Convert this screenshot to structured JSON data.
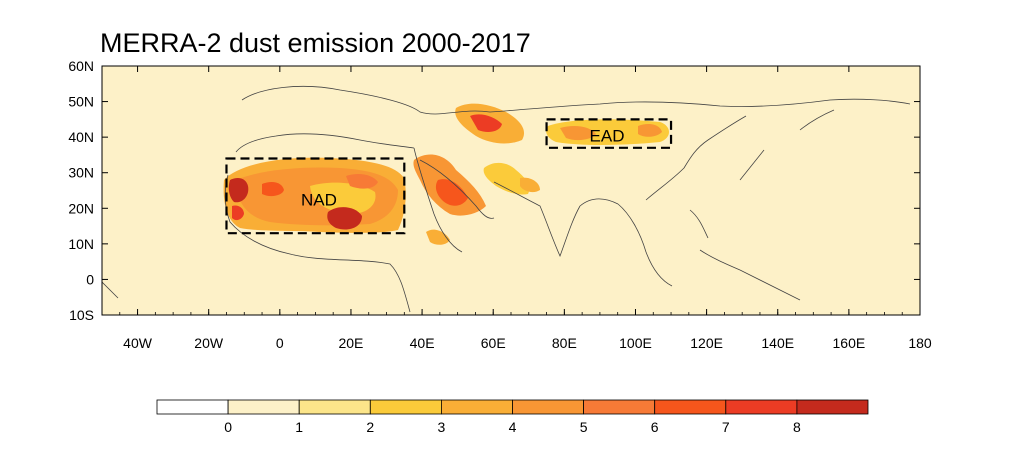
{
  "title": "MERRA-2 dust emission 2000-2017",
  "map": {
    "lon_range": [
      -50,
      180
    ],
    "lat_range": [
      -10,
      60
    ],
    "background_color": "#fdf1c8",
    "lon_ticks": [
      {
        "value": -40,
        "label": "40W"
      },
      {
        "value": -20,
        "label": "20W"
      },
      {
        "value": 0,
        "label": "0"
      },
      {
        "value": 20,
        "label": "20E"
      },
      {
        "value": 40,
        "label": "40E"
      },
      {
        "value": 60,
        "label": "60E"
      },
      {
        "value": 80,
        "label": "80E"
      },
      {
        "value": 100,
        "label": "100E"
      },
      {
        "value": 120,
        "label": "120E"
      },
      {
        "value": 140,
        "label": "140E"
      },
      {
        "value": 160,
        "label": "160E"
      },
      {
        "value": 180,
        "label": "180"
      }
    ],
    "lat_ticks": [
      {
        "value": 60,
        "label": "60N"
      },
      {
        "value": 50,
        "label": "50N"
      },
      {
        "value": 40,
        "label": "40N"
      },
      {
        "value": 30,
        "label": "30N"
      },
      {
        "value": 20,
        "label": "20N"
      },
      {
        "value": 10,
        "label": "10N"
      },
      {
        "value": 0,
        "label": "0"
      },
      {
        "value": -10,
        "label": "10S"
      }
    ],
    "regions": [
      {
        "name": "NAD",
        "lon": [
          -15,
          35
        ],
        "lat": [
          13,
          34
        ],
        "label_at": [
          11,
          22.5
        ]
      },
      {
        "name": "EAD",
        "lon": [
          75,
          110
        ],
        "lat": [
          37,
          45
        ],
        "label_at": [
          92,
          40.5
        ]
      }
    ]
  },
  "colorbar": {
    "colors": [
      "#ffffff",
      "#fdf1c8",
      "#fce58a",
      "#fbcb3a",
      "#f9ae36",
      "#f89634",
      "#f77a36",
      "#f6561c",
      "#ec3c24",
      "#c42a1d"
    ],
    "labels": [
      "0",
      "1",
      "2",
      "3",
      "4",
      "5",
      "6",
      "7",
      "8"
    ]
  }
}
